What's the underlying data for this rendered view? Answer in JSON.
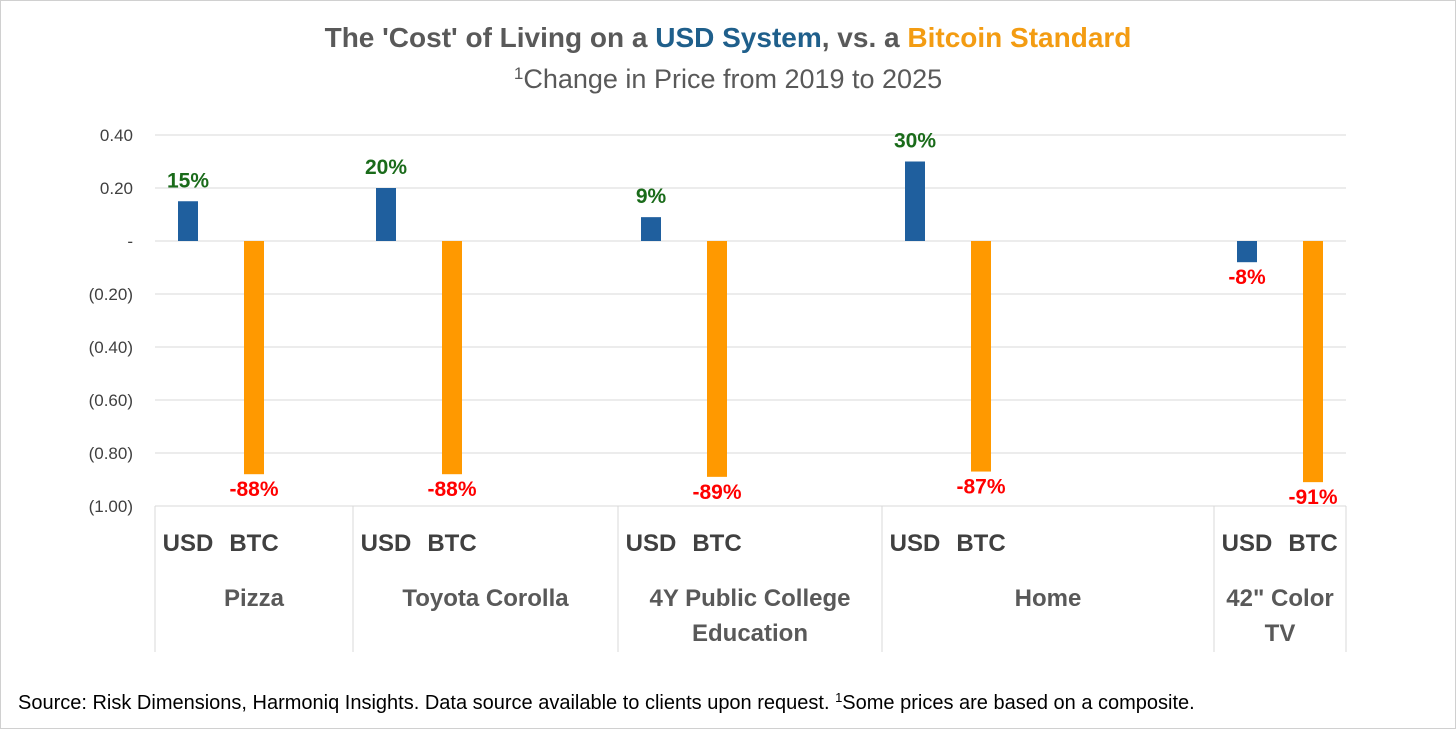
{
  "title": {
    "prefix": "The 'Cost' of Living on a ",
    "usd": "USD System",
    "middle": ", vs. a ",
    "btc": "Bitcoin Standard"
  },
  "subtitle": {
    "footnote": "1",
    "text": "Change in Price from 2019 to 2025"
  },
  "source": {
    "text": "Source: Risk Dimensions, Harmoniq Insights. Data source available to clients upon request. ",
    "footnote": "1",
    "note": "Some prices are based on a composite."
  },
  "colors": {
    "usd": "#1f5f9e",
    "btc": "#ff9900",
    "positive_label": "#1a6b1a",
    "negative_label": "#ff0000",
    "grid": "#d9d9d9"
  },
  "chart_data": {
    "type": "bar",
    "title": "The 'Cost' of Living on a USD System, vs. a Bitcoin Standard",
    "subtitle": "1Change in Price from 2019 to 2025",
    "categories": [
      "Pizza",
      "Toyota Corolla",
      "4Y Public College Education",
      "Home",
      "42\" Color TV"
    ],
    "category_lines": [
      [
        "Pizza"
      ],
      [
        "Toyota Corolla"
      ],
      [
        "4Y Public College",
        "Education"
      ],
      [
        "Home"
      ],
      [
        "42\" Color",
        "TV"
      ]
    ],
    "series": [
      {
        "name": "USD",
        "values": [
          0.15,
          0.2,
          0.09,
          0.3,
          -0.08
        ],
        "labels": [
          "15%",
          "20%",
          "9%",
          "30%",
          "-8%"
        ]
      },
      {
        "name": "BTC",
        "values": [
          -0.88,
          -0.88,
          -0.89,
          -0.87,
          -0.91
        ],
        "labels": [
          "-88%",
          "-88%",
          "-89%",
          "-87%",
          "-91%"
        ]
      }
    ],
    "yticks": [
      0.4,
      0.2,
      0,
      -0.2,
      -0.4,
      -0.6,
      -0.8,
      -1.0
    ],
    "ytick_labels": [
      "0.40",
      "0.20",
      "-",
      "(0.20)",
      "(0.40)",
      "(0.60)",
      "(0.80)",
      "(1.00)"
    ],
    "ylim": [
      -1.0,
      0.4
    ],
    "grid": true,
    "xlabel": "",
    "ylabel": ""
  }
}
